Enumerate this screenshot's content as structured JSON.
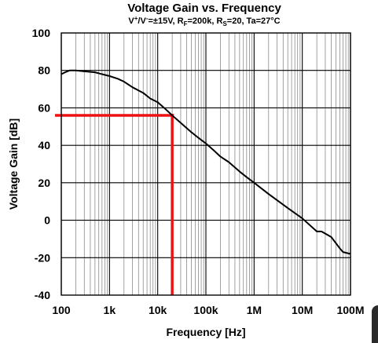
{
  "chart_data": {
    "type": "line",
    "title": "Voltage Gain vs. Frequency",
    "subtitle": "V⁺/V⁻=±15V, R_F=200k, R_S=20, Ta=27°C",
    "xlabel": "Frequency [Hz]",
    "ylabel": "Voltage Gain [dB]",
    "x_scale": "log",
    "xlim": [
      100,
      100000000
    ],
    "ylim": [
      -40,
      100
    ],
    "x_ticks": [
      {
        "value": 100,
        "label": "100"
      },
      {
        "value": 1000,
        "label": "1k"
      },
      {
        "value": 10000,
        "label": "10k"
      },
      {
        "value": 100000,
        "label": "100k"
      },
      {
        "value": 1000000,
        "label": "1M"
      },
      {
        "value": 10000000,
        "label": "10M"
      },
      {
        "value": 100000000,
        "label": "100M"
      }
    ],
    "y_ticks": [
      100,
      80,
      60,
      40,
      20,
      0,
      -20,
      -40
    ],
    "grid": true,
    "series_color": "#000000",
    "series": [
      {
        "name": "",
        "x": [
          100,
          120,
          150,
          200,
          300,
          500,
          700,
          1000,
          1500,
          2000,
          3000,
          5000,
          7000,
          10000,
          15000,
          20000,
          30000,
          50000,
          70000,
          100000,
          150000,
          200000,
          300000,
          500000,
          700000,
          1000000,
          2000000,
          5000000,
          10000000,
          20000000,
          25000000,
          40000000,
          60000000,
          70000000,
          100000000
        ],
        "y": [
          78,
          79,
          80,
          80,
          79.5,
          79,
          78,
          77,
          75.5,
          74,
          71,
          68,
          65,
          63,
          59,
          56,
          52,
          47,
          44,
          41,
          37,
          34,
          31,
          26,
          23,
          20,
          14,
          6.5,
          1,
          -6,
          -6,
          -9,
          -15,
          -17,
          -18
        ]
      }
    ],
    "annotation_color": "#ee1111",
    "annotations": [
      {
        "type": "hline",
        "y": 56,
        "x_from": 100,
        "x_to": 20000
      },
      {
        "type": "vline",
        "x": 20000,
        "y_from": -40,
        "y_to": 56
      }
    ]
  }
}
